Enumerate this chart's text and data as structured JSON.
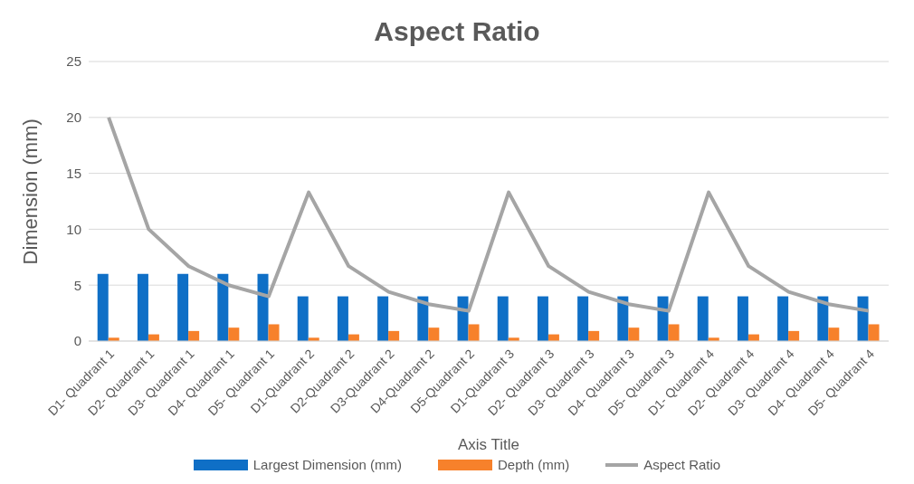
{
  "chart_data": {
    "type": "bar",
    "title": "Aspect Ratio",
    "xlabel": "Axis Title",
    "ylabel": "Dimension (mm)",
    "categories": [
      "D1- Quadrant 1",
      "D2- Quadrant 1",
      "D3- Quadrant 1",
      "D4- Quadrant 1",
      "D5- Quadrant 1",
      "D1-Quadrant 2",
      "D2-Quadrant 2",
      "D3-Quadrant 2",
      "D4-Quadrant 2",
      "D5-Quadrant 2",
      "D1-Quadrant 3",
      "D2- Quadrant 3",
      "D3- Quadrant 3",
      "D4- Quadrant 3",
      "D5- Quadrant 3",
      "D1- Quadrant 4",
      "D2- Quadrant 4",
      "D3- Quadrant 4",
      "D4- Quadrant 4",
      "D5- Quadrant 4"
    ],
    "series": [
      {
        "name": "Largest Dimension (mm)",
        "color": "#0f6fc6",
        "values": [
          6,
          6,
          6,
          6,
          6,
          4,
          4,
          4,
          4,
          4,
          4,
          4,
          4,
          4,
          4,
          4,
          4,
          4,
          4,
          4
        ]
      },
      {
        "name": "Depth (mm)",
        "color": "#f7812b",
        "values": [
          0.3,
          0.6,
          0.9,
          1.2,
          1.5,
          0.3,
          0.6,
          0.9,
          1.2,
          1.5,
          0.3,
          0.6,
          0.9,
          1.2,
          1.5,
          0.3,
          0.6,
          0.9,
          1.2,
          1.5
        ]
      },
      {
        "name": "Aspect Ratio",
        "type": "line",
        "color": "#a5a5a5",
        "values": [
          20,
          10,
          6.7,
          5,
          4,
          13.3,
          6.7,
          4.4,
          3.3,
          2.7,
          13.3,
          6.7,
          4.4,
          3.3,
          2.7,
          13.3,
          6.7,
          4.4,
          3.3,
          2.7
        ]
      }
    ],
    "ylim": [
      0,
      25
    ],
    "yticks": [
      0,
      5,
      10,
      15,
      20,
      25
    ],
    "grid": "y",
    "legend": "bottom",
    "marker": "none",
    "line_style": "solid"
  }
}
